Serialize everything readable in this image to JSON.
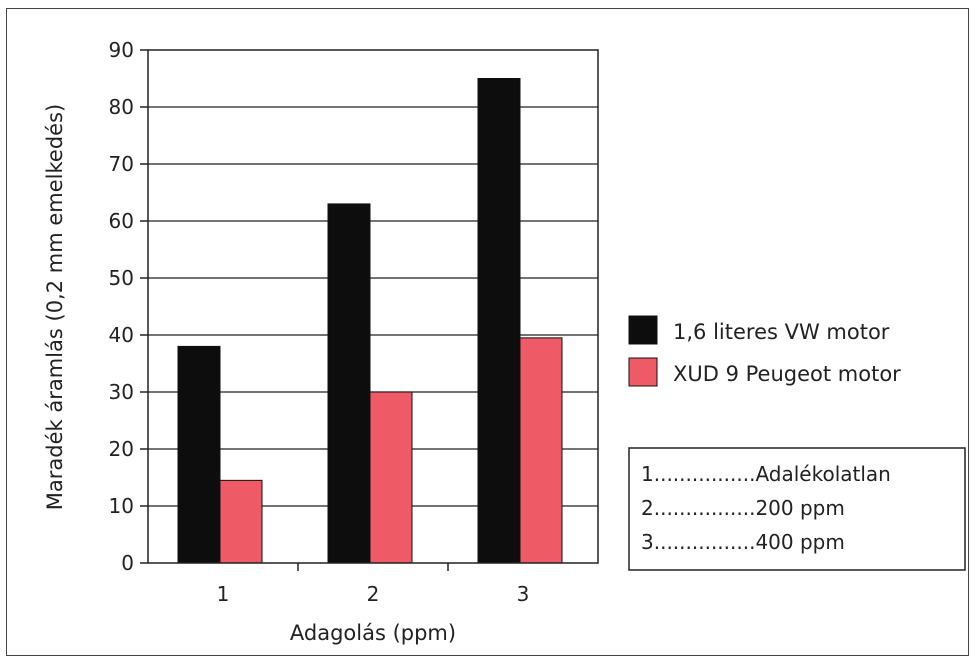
{
  "chart_data": {
    "type": "bar",
    "xlabel": "Adagolás (ppm)",
    "ylabel": "Maradék áramlás (0,2 mm emelkedés)",
    "categories": [
      "1",
      "2",
      "3"
    ],
    "ylim": [
      0,
      90
    ],
    "yticks": [
      "0",
      "10",
      "20",
      "30",
      "40",
      "50",
      "60",
      "70",
      "80",
      "90"
    ],
    "grid": true,
    "legend_position": "right",
    "series": [
      {
        "name": "1,6 literes VW motor",
        "values": [
          38,
          63,
          85
        ],
        "color": "#0d0d0d"
      },
      {
        "name": "XUD 9 Peugeot motor",
        "values": [
          14.5,
          30,
          39.5
        ],
        "color": "#ee5a66"
      }
    ],
    "notes": [
      "1................Adalékolatlan",
      "2................200 ppm",
      "3................400 ppm"
    ]
  }
}
